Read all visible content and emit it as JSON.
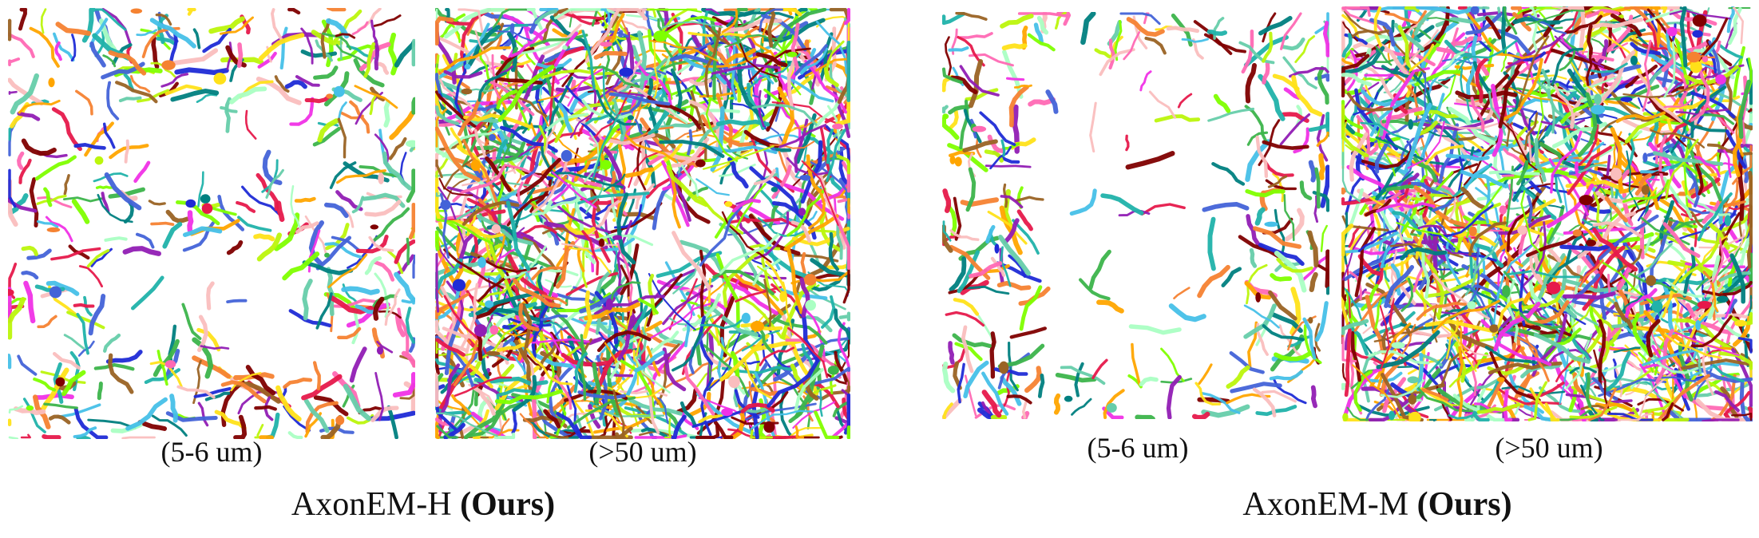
{
  "groups": [
    {
      "title": "AxonEM-H",
      "title_bold": "(Ours)",
      "panels": [
        {
          "caption": "(5-6 um)",
          "density": "sparse"
        },
        {
          "caption": "(>50 um)",
          "density": "dense"
        }
      ]
    },
    {
      "title": "AxonEM-M",
      "title_bold": "(Ours)",
      "panels": [
        {
          "caption": "(5-6 um)",
          "density": "sparse"
        },
        {
          "caption": "(>50 um)",
          "density": "dense"
        }
      ]
    }
  ],
  "palette": [
    "#e6194b",
    "#3cb44b",
    "#4363d8",
    "#f58231",
    "#911eb4",
    "#46c0e8",
    "#f032e6",
    "#bcf60c",
    "#fabebe",
    "#008080",
    "#9a6324",
    "#ffe119",
    "#800000",
    "#aaffc3",
    "#1f2bd6",
    "#ff69b4",
    "#66cdaa",
    "#ffa500",
    "#7fff00",
    "#20b2aa"
  ]
}
